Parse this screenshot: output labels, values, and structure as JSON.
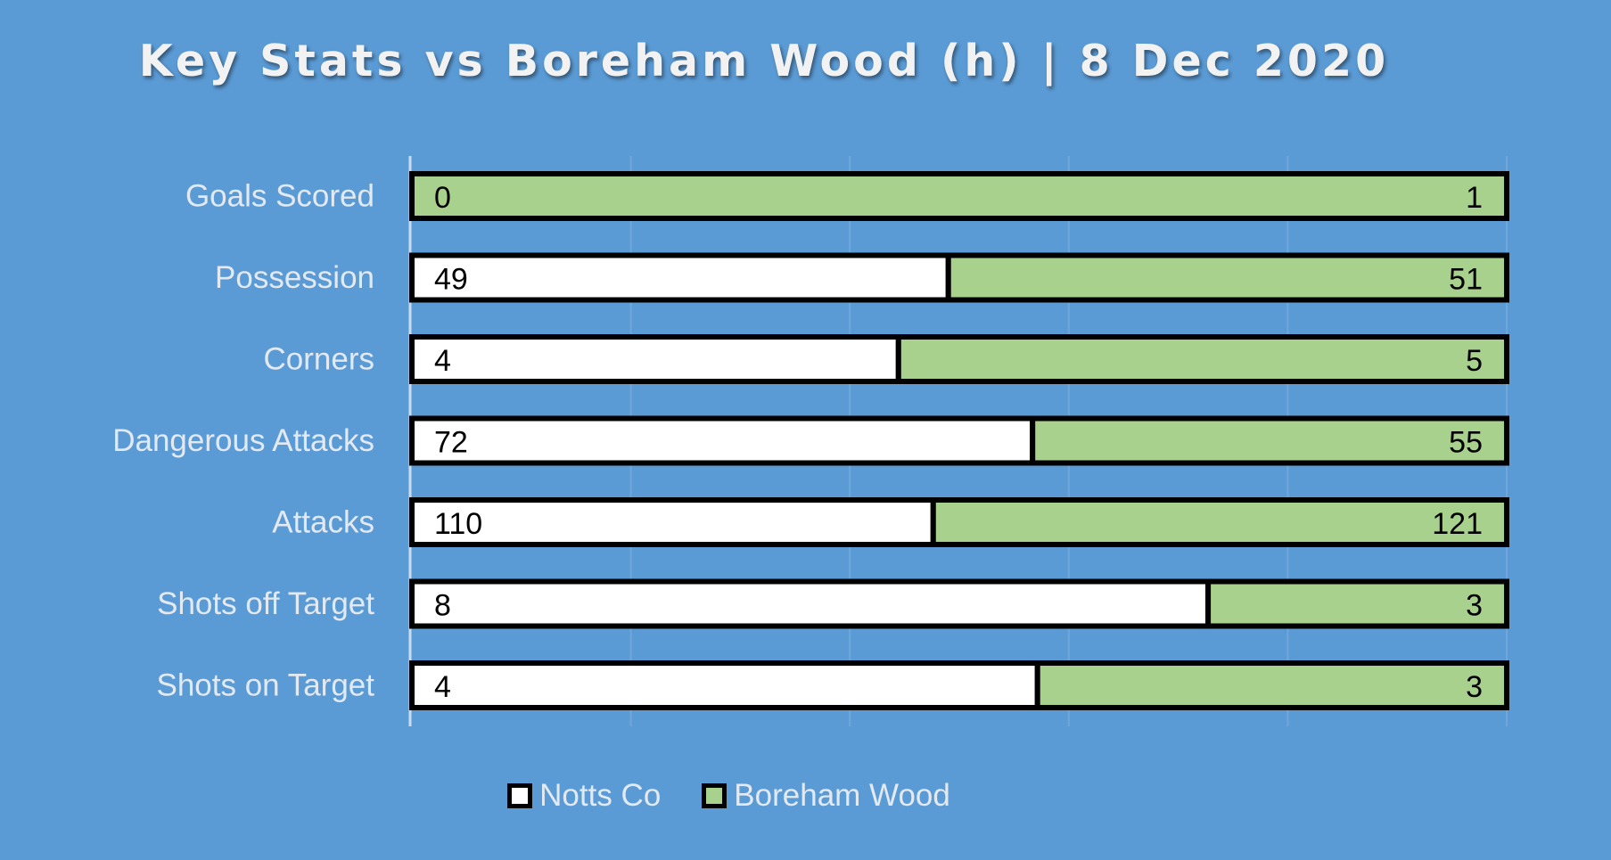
{
  "chart_data": {
    "type": "bar",
    "orientation": "horizontal",
    "stacked": "100%",
    "title": "Key Stats vs Boreham Wood (h) | 8 Dec 2020",
    "categories": [
      "Goals Scored",
      "Possession",
      "Corners",
      "Dangerous Attacks",
      "Attacks",
      "Shots off Target",
      "Shots on Target"
    ],
    "series": [
      {
        "name": "Notts Co",
        "values": [
          0,
          49,
          4,
          72,
          110,
          8,
          4
        ],
        "color": "#ffffff"
      },
      {
        "name": "Boreham Wood",
        "values": [
          1,
          51,
          5,
          55,
          121,
          3,
          3
        ],
        "color": "#a9d18e"
      }
    ],
    "xlim": [
      0,
      1
    ],
    "grid": true,
    "legend_position": "bottom"
  }
}
